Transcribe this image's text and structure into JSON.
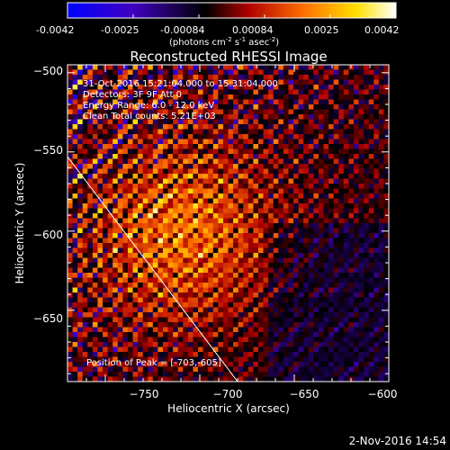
{
  "colorbar": {
    "ticks": [
      "-0.0042",
      "-0.0025",
      "-0.00084",
      "0.00084",
      "0.0025",
      "0.0042"
    ],
    "unit_main": "(photons cm",
    "unit_exp1": "-2",
    "unit_mid": " s",
    "unit_exp2": "-1",
    "unit_tail": " asec",
    "unit_exp3": "-2",
    "unit_close": ")",
    "range": [
      -0.0042,
      0.0042
    ],
    "colormap": [
      "#0000ff",
      "#4000c0",
      "#000000",
      "#c00000",
      "#ff8000",
      "#ffff00",
      "#ffffff"
    ]
  },
  "annotations": {
    "time": "31-Oct-2016 15:21:04.000 to 15:31:04.000",
    "detectors": "Detectors: 3F 9F  Att 0",
    "energy": "Energy Range: 6.0 - 12.0 keV",
    "clean": "Clean    Total counts: 5.21E+03",
    "peak": "Position of Peak = [-703,-605]"
  },
  "timestamp": "2-Nov-2016 14:54",
  "chart_data": {
    "type": "heatmap",
    "title": "Reconstructed RHESSI Image",
    "xlabel": "Heliocentric X (arcsec)",
    "ylabel": "Heliocentric Y (arcsec)",
    "xlim": [
      -770,
      -600
    ],
    "ylim": [
      -695,
      -495
    ],
    "xticks": [
      -750,
      -700,
      -650,
      -600
    ],
    "xtick_labels": [
      "−750",
      "−700",
      "−650",
      "−600"
    ],
    "yticks": [
      -650,
      -600,
      -550,
      -500
    ],
    "ytick_labels": [
      "−650",
      "−600",
      "−550",
      "−500"
    ],
    "peak": [
      -703,
      -605
    ],
    "limb_line": [
      [
        -770,
        -553
      ],
      [
        -680,
        -695
      ]
    ]
  }
}
